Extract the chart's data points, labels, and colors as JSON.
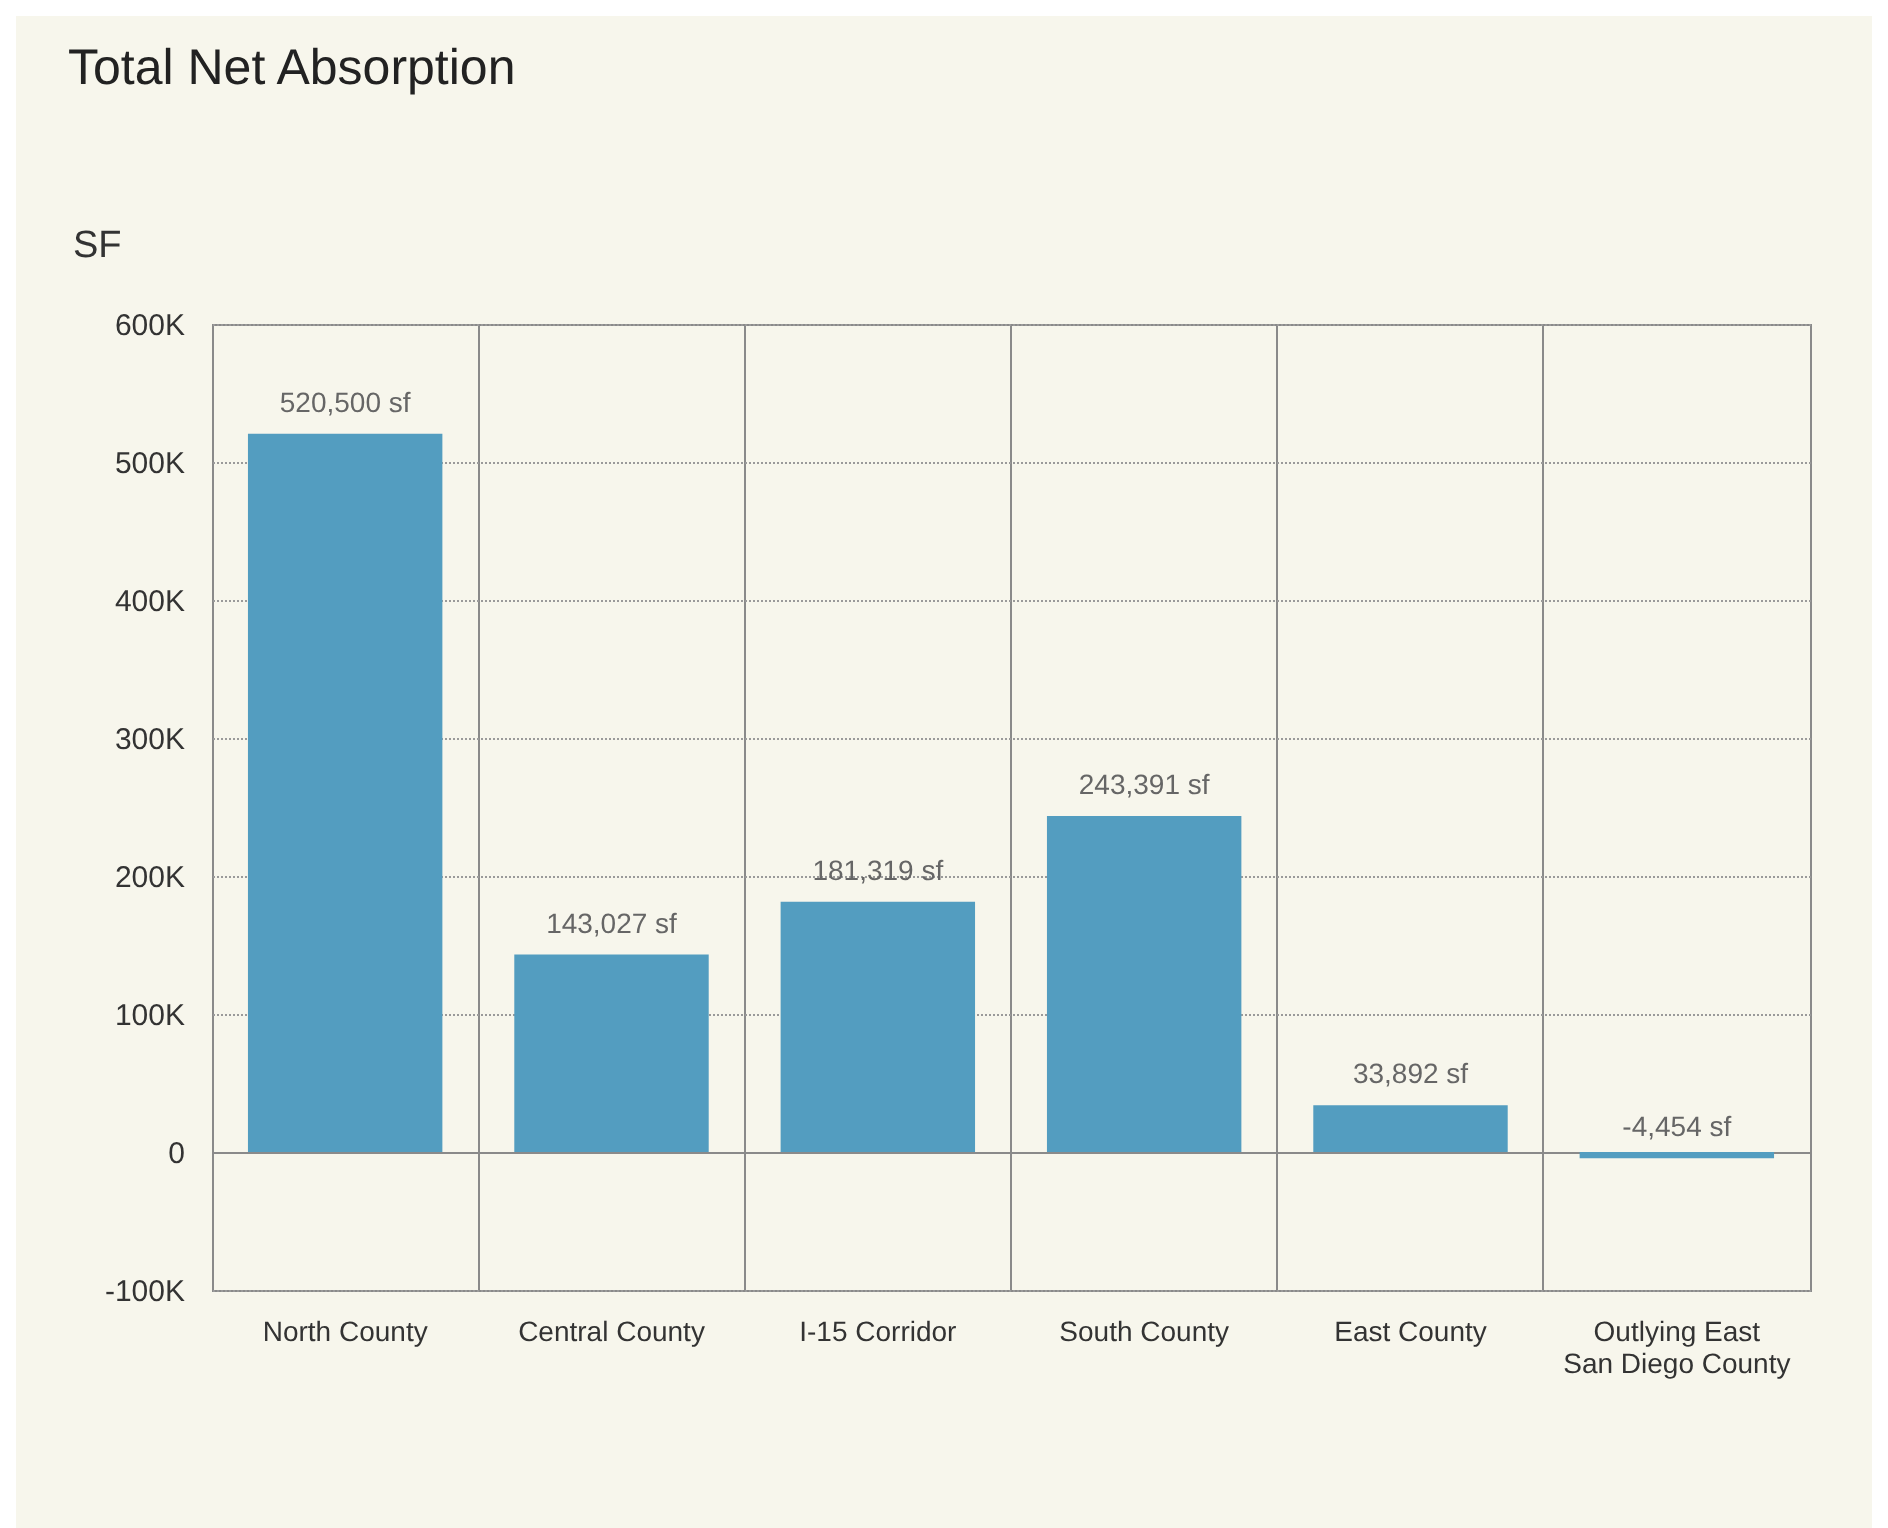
{
  "chart_data": {
    "type": "bar",
    "title": "Total Net Absorption",
    "ylabel": "SF",
    "categories": [
      "North County",
      "Central County",
      "I-15 Corridor",
      "South County",
      "East County",
      "Outlying East San Diego County"
    ],
    "values": [
      520500,
      143027,
      181319,
      243391,
      33892,
      -4454
    ],
    "value_labels": [
      "520,500 sf",
      "143,027 sf",
      "181,319 sf",
      "243,391 sf",
      "33,892 sf",
      "-4,454 sf"
    ],
    "color": "#539dc0",
    "ylim": [
      -100000,
      600000
    ],
    "yticks": [
      {
        "value": -100000,
        "label": "-100K"
      },
      {
        "value": 0,
        "label": "0"
      },
      {
        "value": 100000,
        "label": "100K"
      },
      {
        "value": 200000,
        "label": "200K"
      },
      {
        "value": 300000,
        "label": "300K"
      },
      {
        "value": 400000,
        "label": "400K"
      },
      {
        "value": 500000,
        "label": "500K"
      },
      {
        "value": 600000,
        "label": "600K"
      }
    ],
    "grid": true
  }
}
